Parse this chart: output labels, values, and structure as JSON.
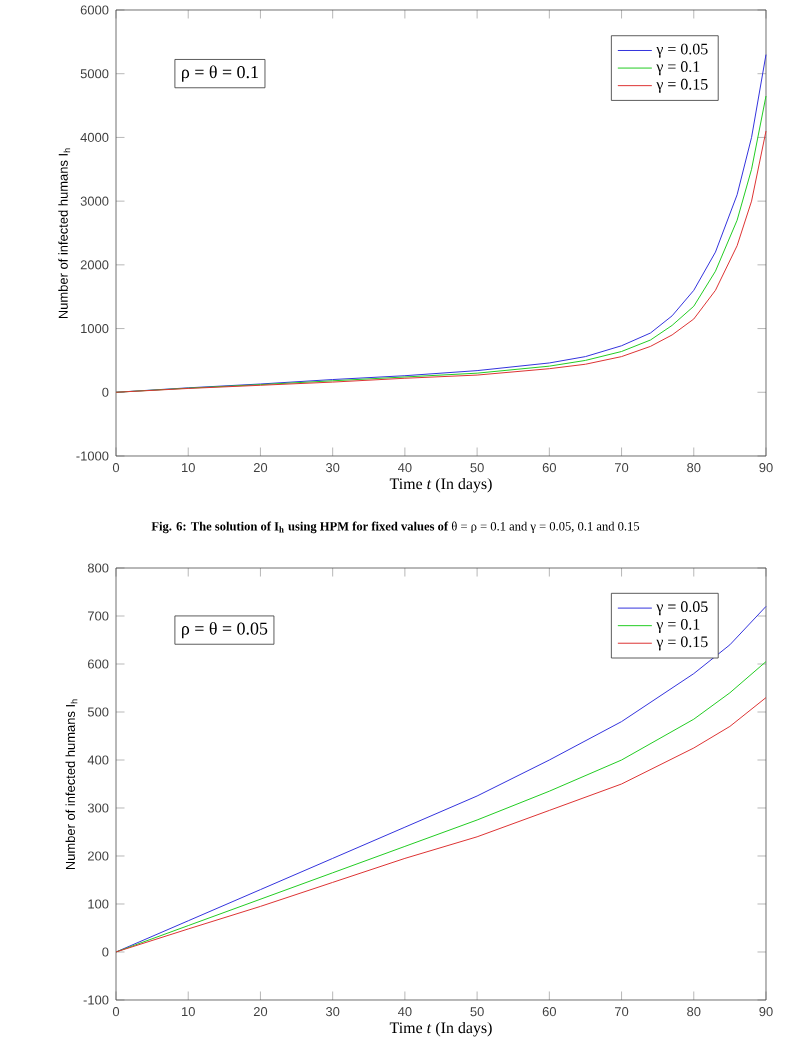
{
  "chart_data": [
    {
      "type": "line",
      "xlabel": "Time *t* (In days)",
      "ylabel": "Number of infected humans I$_{h}$",
      "xlim": [
        0,
        90
      ],
      "ylim": [
        -1000,
        6000
      ],
      "xticks": [
        0,
        10,
        20,
        30,
        40,
        50,
        60,
        70,
        80,
        90
      ],
      "yticks": [
        -1000,
        0,
        1000,
        2000,
        3000,
        4000,
        5000,
        6000
      ],
      "legend": "top right",
      "grid": false,
      "marker": "none",
      "line_style": "solid",
      "x": [
        0,
        10,
        20,
        30,
        40,
        50,
        60,
        65,
        70,
        74,
        77,
        80,
        83,
        86,
        88,
        90
      ],
      "series": [
        {
          "name": "γ = 0.05",
          "color": "#3333dd",
          "values": [
            0,
            70,
            130,
            200,
            260,
            340,
            460,
            560,
            730,
            930,
            1200,
            1600,
            2200,
            3100,
            4000,
            5300
          ]
        },
        {
          "name": "γ = 0.1",
          "color": "#22cc22",
          "values": [
            0,
            65,
            120,
            180,
            240,
            300,
            410,
            500,
            640,
            820,
            1050,
            1350,
            1900,
            2700,
            3500,
            4650
          ]
        },
        {
          "name": "γ = 0.15",
          "color": "#dd3333",
          "values": [
            0,
            60,
            110,
            160,
            220,
            270,
            370,
            440,
            560,
            720,
            900,
            1150,
            1600,
            2300,
            3000,
            4100
          ]
        }
      ],
      "annotations": [
        "ρ = θ = 0.1",
        "**Fig. 6: The solution of I$_{h}$ using HPM for fixed values of** θ = ρ = 0.1 and γ = 0.05, 0.1 and 0.15"
      ]
    },
    {
      "type": "line",
      "xlabel": "Time *t* (In days)",
      "ylabel": "Number of infected humans I$_{h}$",
      "xlim": [
        0,
        90
      ],
      "ylim": [
        -100,
        800
      ],
      "xticks": [
        0,
        10,
        20,
        30,
        40,
        50,
        60,
        70,
        80,
        90
      ],
      "yticks": [
        -100,
        0,
        100,
        200,
        300,
        400,
        500,
        600,
        700,
        800
      ],
      "legend": "top right",
      "grid": false,
      "marker": "none",
      "line_style": "solid",
      "x": [
        0,
        10,
        20,
        30,
        40,
        50,
        60,
        70,
        80,
        85,
        90
      ],
      "series": [
        {
          "name": "γ = 0.05",
          "color": "#3333dd",
          "values": [
            0,
            65,
            130,
            195,
            260,
            325,
            400,
            480,
            580,
            640,
            720
          ]
        },
        {
          "name": "γ = 0.1",
          "color": "#22cc22",
          "values": [
            0,
            55,
            110,
            165,
            220,
            275,
            335,
            400,
            485,
            540,
            605
          ]
        },
        {
          "name": "γ = 0.15",
          "color": "#dd3333",
          "values": [
            0,
            48,
            95,
            145,
            195,
            240,
            295,
            350,
            425,
            470,
            530
          ]
        }
      ],
      "annotations": [
        "ρ = θ = 0.05"
      ]
    }
  ]
}
